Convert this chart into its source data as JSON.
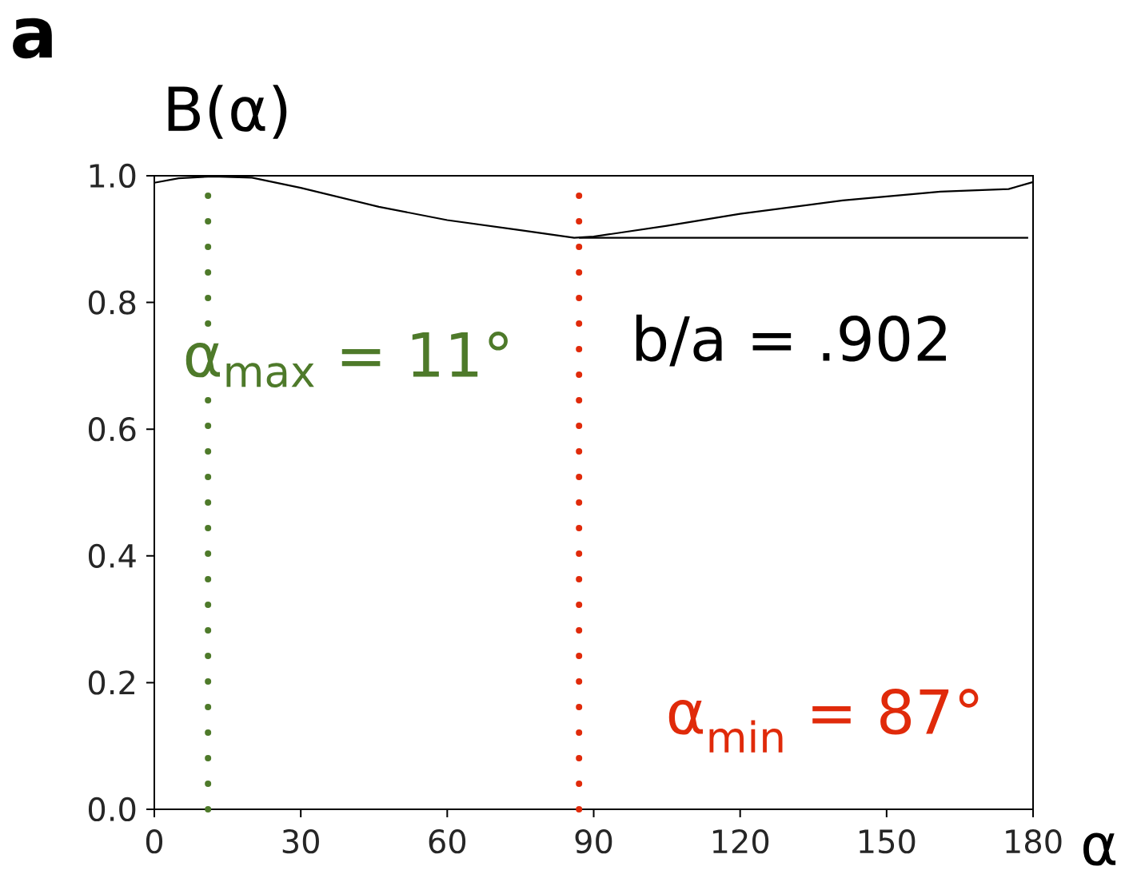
{
  "chart_data": {
    "type": "line",
    "xlabel": "α",
    "ylabel": "B(α)",
    "x": [
      0,
      5,
      12,
      20,
      30,
      46,
      60,
      75,
      86,
      90,
      105,
      120,
      141,
      161,
      175,
      180
    ],
    "series": [
      {
        "color": "#000000",
        "values": [
          0.989,
          0.996,
          0.999,
          0.997,
          0.981,
          0.951,
          0.93,
          0.914,
          0.902,
          0.904,
          0.921,
          0.94,
          0.961,
          0.975,
          0.979,
          0.99
        ]
      },
      {
        "type": "line",
        "color": "#000000",
        "x": [
          87,
          179
        ],
        "values": [
          0.902,
          0.902
        ]
      }
    ],
    "xlim": [
      0,
      180
    ],
    "xticks": [
      0,
      30,
      60,
      90,
      120,
      150,
      180
    ],
    "ylim": [
      0,
      1
    ],
    "yticks": [
      {
        "value": 0,
        "label": "0.0"
      },
      {
        "value": 0.2,
        "label": "0.2"
      },
      {
        "value": 0.4,
        "label": "0.4"
      },
      {
        "value": 0.6,
        "label": "0.6"
      },
      {
        "value": 0.8,
        "label": "0.8"
      },
      {
        "value": 1,
        "label": "1.0"
      }
    ],
    "ref_lines": [
      {
        "axis": "x",
        "value": 11,
        "label": "α$_{max}$ = 11°",
        "color": "#4e7a2a",
        "line_style": "dotted"
      },
      {
        "axis": "x",
        "value": 87,
        "label": "α$_{min}$ = 87°",
        "color": "#e02a0a",
        "line_style": "dotted"
      }
    ],
    "annotations": [
      "a",
      "b/a = .902"
    ]
  }
}
